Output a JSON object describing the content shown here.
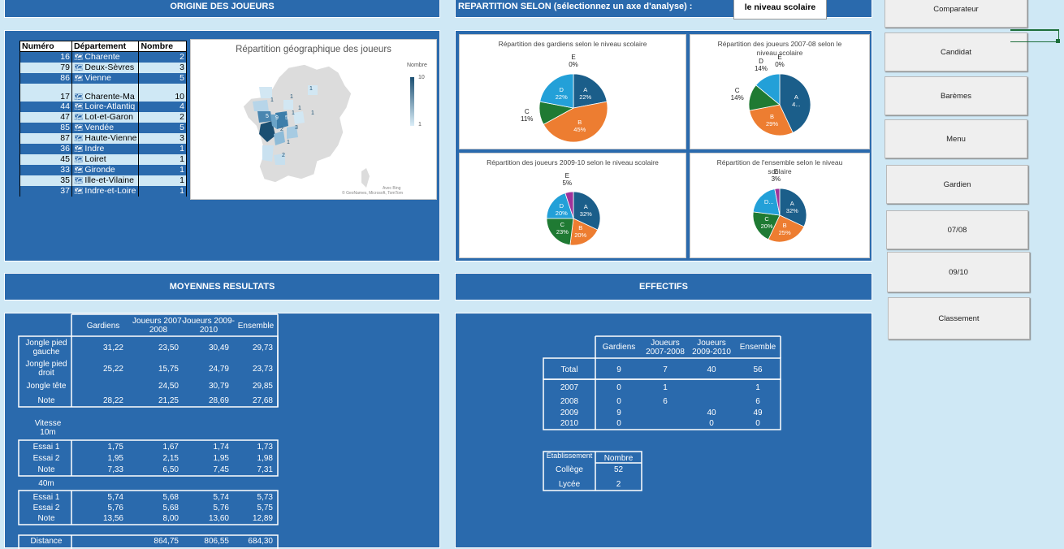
{
  "origine": {
    "header": "ORIGINE DES JOUEURS",
    "columns": [
      "Numéro",
      "Département",
      "Nombre"
    ],
    "rows": [
      {
        "num": "16",
        "dept": "Charente",
        "nombre": "2"
      },
      {
        "num": "79",
        "dept": "Deux-Sèvres",
        "nombre": "3"
      },
      {
        "num": "86",
        "dept": "Vienne",
        "nombre": "5"
      },
      {
        "num": "17",
        "dept": "Charente-Ma",
        "nombre": "10"
      },
      {
        "num": "44",
        "dept": "Loire-Atlantiq",
        "nombre": "4"
      },
      {
        "num": "47",
        "dept": "Lot-et-Garon",
        "nombre": "2"
      },
      {
        "num": "85",
        "dept": "Vendée",
        "nombre": "5"
      },
      {
        "num": "87",
        "dept": "Haute-Vienne",
        "nombre": "3"
      },
      {
        "num": "36",
        "dept": "Indre",
        "nombre": "1"
      },
      {
        "num": "45",
        "dept": "Loiret",
        "nombre": "1"
      },
      {
        "num": "33",
        "dept": "Gironde",
        "nombre": "1"
      },
      {
        "num": "35",
        "dept": "Ille-et-Vilaine",
        "nombre": "1"
      },
      {
        "num": "37",
        "dept": "Indre-et-Loire",
        "nombre": "1"
      }
    ],
    "map_title": "Répartition géographique des joueurs",
    "legend_title": "Nombre",
    "legend_max": "10",
    "legend_min": "1",
    "credit1": "Avec Bing",
    "credit2": "© GeoNames, Microsoft, TomTom",
    "map_labels": [
      "1",
      "1",
      "1",
      "1",
      "5",
      "9",
      "5",
      "1",
      "2",
      "3",
      "1",
      "2",
      "1"
    ]
  },
  "repartition": {
    "header": "REPARTITION SELON (sélectionnez un axe d'analyse) :",
    "axis_value": "le niveau scolaire"
  },
  "pies": [
    {
      "title": "Répartition des gardiens selon le niveau scolaire",
      "labels": {
        "A": "A\n22%",
        "B": "B\n45%",
        "C": "C\n11%",
        "D": "D\n22%",
        "E": "E\n0%"
      }
    },
    {
      "title": "Répartition des joueurs 2007-08 selon le niveau scolaire",
      "labels": {
        "A": "A\n4...",
        "B": "B\n29%",
        "C": "C\n14%",
        "D": "D\n14%",
        "E": "E\n0%"
      }
    },
    {
      "title": "Répartition des joueurs 2009-10 selon le niveau scolaire",
      "labels": {
        "A": "A\n32%",
        "B": "B\n20%",
        "C": "C\n23%",
        "D": "D\n20%",
        "E": "E\n5%"
      }
    },
    {
      "title": "Répartition de l'ensemble selon le niveau scolaire",
      "labels": {
        "A": "A\n32%",
        "B": "B\n25%",
        "C": "C\n20%",
        "D": "D...",
        "E": "E\n3%"
      }
    }
  ],
  "chart_data": [
    {
      "type": "pie",
      "title": "Répartition des gardiens selon le niveau scolaire",
      "categories": [
        "A",
        "B",
        "C",
        "D",
        "E"
      ],
      "values": [
        22,
        45,
        11,
        22,
        0
      ]
    },
    {
      "type": "pie",
      "title": "Répartition des joueurs 2007-08 selon le niveau scolaire",
      "categories": [
        "A",
        "B",
        "C",
        "D",
        "E"
      ],
      "values": [
        43,
        29,
        14,
        14,
        0
      ]
    },
    {
      "type": "pie",
      "title": "Répartition des joueurs 2009-10 selon le niveau scolaire",
      "categories": [
        "A",
        "B",
        "C",
        "D",
        "E"
      ],
      "values": [
        32,
        20,
        23,
        20,
        5
      ]
    },
    {
      "type": "pie",
      "title": "Répartition de l'ensemble selon le niveau scolaire",
      "categories": [
        "A",
        "B",
        "C",
        "D",
        "E"
      ],
      "values": [
        32,
        25,
        20,
        20,
        3
      ]
    }
  ],
  "pie_colors": [
    "#1b5e8a",
    "#ed7d31",
    "#1f7a33",
    "#23a0d8",
    "#a0339a"
  ],
  "moyennes": {
    "header": "MOYENNES RESULTATS",
    "col_headers": [
      "Gardiens",
      "Joueurs 2007-2008",
      "Joueurs 2009-2010",
      "Ensemble"
    ],
    "jongle": [
      {
        "label": "Jongle pied gauche",
        "v": [
          "31,22",
          "23,50",
          "30,49",
          "29,73"
        ]
      },
      {
        "label": "Jongle pied droit",
        "v": [
          "25,22",
          "15,75",
          "24,79",
          "23,73"
        ]
      },
      {
        "label": "Jongle tête",
        "v": [
          "",
          "24,50",
          "30,79",
          "29,85"
        ]
      },
      {
        "label": "Note",
        "v": [
          "28,22",
          "21,25",
          "28,69",
          "27,68"
        ]
      }
    ],
    "vitesse_label": "Vitesse 10m",
    "vitesse10": [
      {
        "label": "Essai 1",
        "v": [
          "1,75",
          "1,67",
          "1,74",
          "1,73"
        ]
      },
      {
        "label": "Essai 2",
        "v": [
          "1,95",
          "2,15",
          "1,95",
          "1,98"
        ]
      },
      {
        "label": "Note",
        "v": [
          "7,33",
          "6,50",
          "7,45",
          "7,31"
        ]
      }
    ],
    "label_40m": "40m",
    "vitesse40": [
      {
        "label": "Essai 1",
        "v": [
          "5,74",
          "5,68",
          "5,74",
          "5,73"
        ]
      },
      {
        "label": "Essai 2",
        "v": [
          "5,76",
          "5,68",
          "5,76",
          "5,75"
        ]
      },
      {
        "label": "Note",
        "v": [
          "13,56",
          "8,00",
          "13,60",
          "12,89"
        ]
      }
    ],
    "distance": {
      "label": "Distance",
      "v": [
        "",
        "864,75",
        "806,55",
        "684,30"
      ]
    }
  },
  "effectifs": {
    "header": "EFFECTIFS",
    "col_headers": [
      "Gardiens",
      "Joueurs 2007-2008",
      "Joueurs 2009-2010",
      "Ensemble"
    ],
    "total": {
      "label": "Total",
      "v": [
        "9",
        "7",
        "40",
        "56"
      ]
    },
    "years": [
      {
        "label": "2007",
        "v": [
          "0",
          "1",
          "",
          "1"
        ]
      },
      {
        "label": "2008",
        "v": [
          "0",
          "6",
          "",
          "6"
        ]
      },
      {
        "label": "2009",
        "v": [
          "9",
          "",
          "40",
          "49"
        ]
      },
      {
        "label": "2010",
        "v": [
          "0",
          "",
          "0",
          "0"
        ]
      }
    ],
    "etab_header": "Etablissement",
    "nombre_header": "Nombre",
    "etab": [
      {
        "label": "Collège",
        "v": "52"
      },
      {
        "label": "Lycée",
        "v": "2"
      }
    ]
  },
  "buttons": [
    "Comparateur",
    "Candidat",
    "Barèmes",
    "Menu",
    "Gardien",
    "07/08",
    "09/10",
    "Classement"
  ]
}
